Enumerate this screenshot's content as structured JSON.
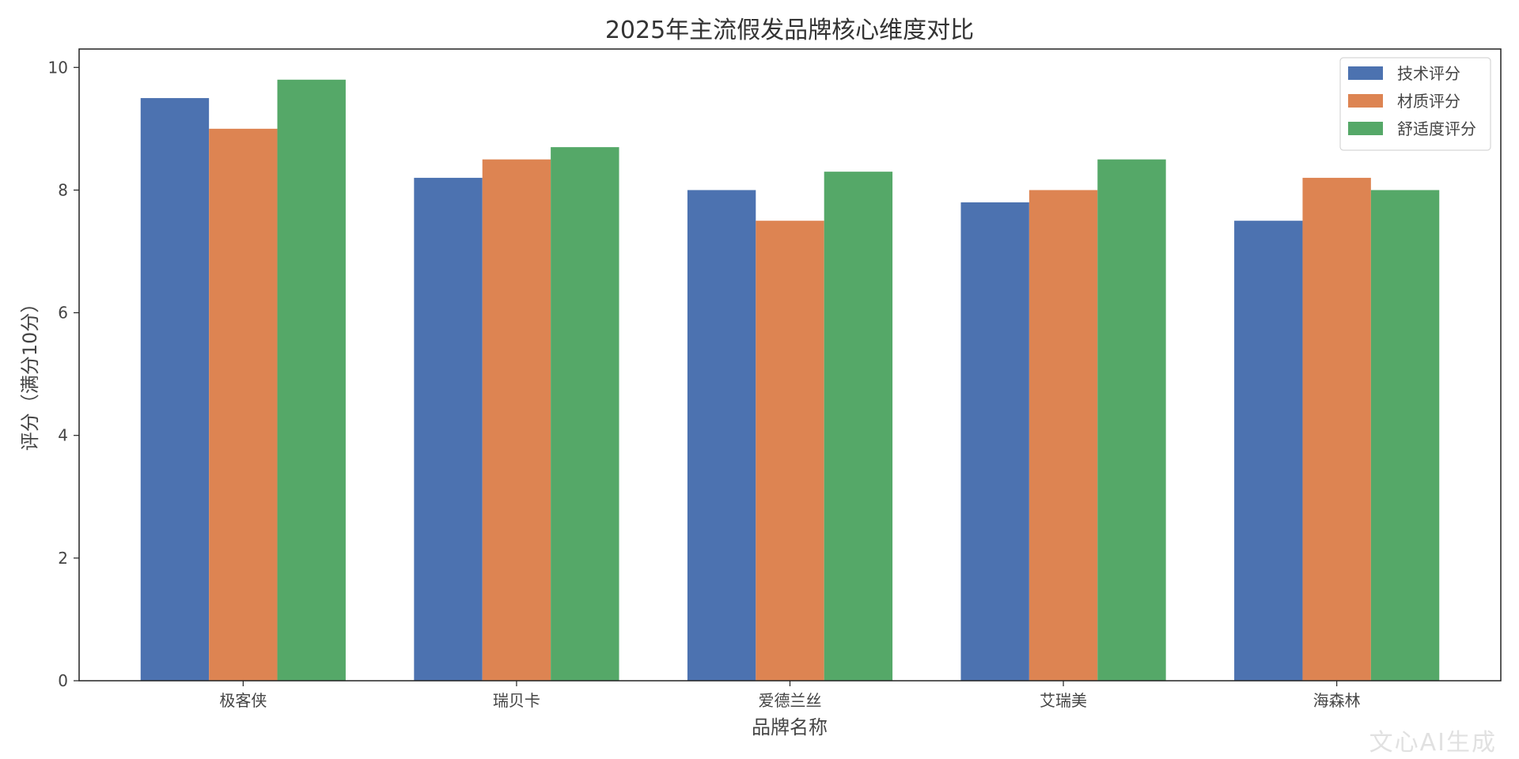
{
  "chart_data": {
    "type": "bar",
    "title": "2025年主流假发品牌核心维度对比",
    "xlabel": "品牌名称",
    "ylabel": "评分（满分10分）",
    "categories": [
      "极客侠",
      "瑞贝卡",
      "爱德兰丝",
      "艾瑞美",
      "海森林"
    ],
    "series": [
      {
        "name": "技术评分",
        "color": "#4c72b0",
        "values": [
          9.5,
          8.2,
          8.0,
          7.8,
          7.5
        ]
      },
      {
        "name": "材质评分",
        "color": "#dd8452",
        "values": [
          9.0,
          8.5,
          7.5,
          8.0,
          8.2
        ]
      },
      {
        "name": "舒适度评分",
        "color": "#55a868",
        "values": [
          9.8,
          8.7,
          8.3,
          8.5,
          8.0
        ]
      }
    ],
    "ylim": [
      0,
      10.3
    ],
    "yticks": [
      0,
      2,
      4,
      6,
      8,
      10
    ],
    "legend_position": "top-right",
    "grid": false
  },
  "watermark": "文心AI生成"
}
